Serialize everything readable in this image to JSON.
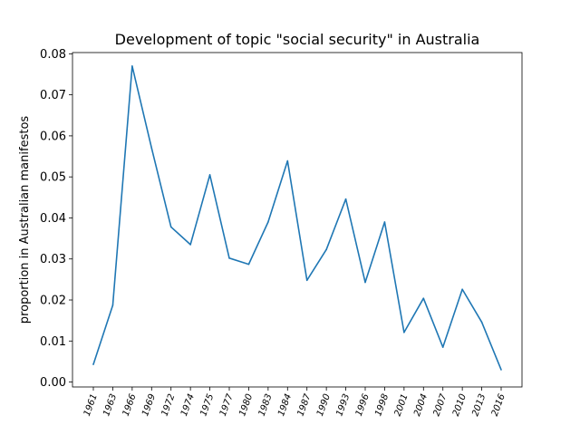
{
  "chart_data": {
    "type": "line",
    "title": "Development of topic \"social security\" in Australia",
    "xlabel": "",
    "ylabel": "proportion in Australian manifestos",
    "categories": [
      "1961",
      "1963",
      "1966",
      "1969",
      "1972",
      "1974",
      "1975",
      "1977",
      "1980",
      "1983",
      "1984",
      "1987",
      "1990",
      "1993",
      "1996",
      "1998",
      "2001",
      "2004",
      "2007",
      "2010",
      "2013",
      "2016"
    ],
    "series": [
      {
        "values": [
          0.0043,
          0.0187,
          0.077,
          0.057,
          0.0378,
          0.0335,
          0.0505,
          0.0302,
          0.0287,
          0.039,
          0.0539,
          0.0248,
          0.0323,
          0.0446,
          0.0243,
          0.039,
          0.0121,
          0.0204,
          0.0085,
          0.0226,
          0.0146,
          0.003
        ],
        "color": "#1f77b4"
      }
    ],
    "yticks": [
      "0.00",
      "0.01",
      "0.02",
      "0.03",
      "0.04",
      "0.05",
      "0.06",
      "0.07",
      "0.08"
    ],
    "ylim": [
      -0.0012,
      0.0803
    ],
    "grid": false,
    "legend": "none"
  }
}
